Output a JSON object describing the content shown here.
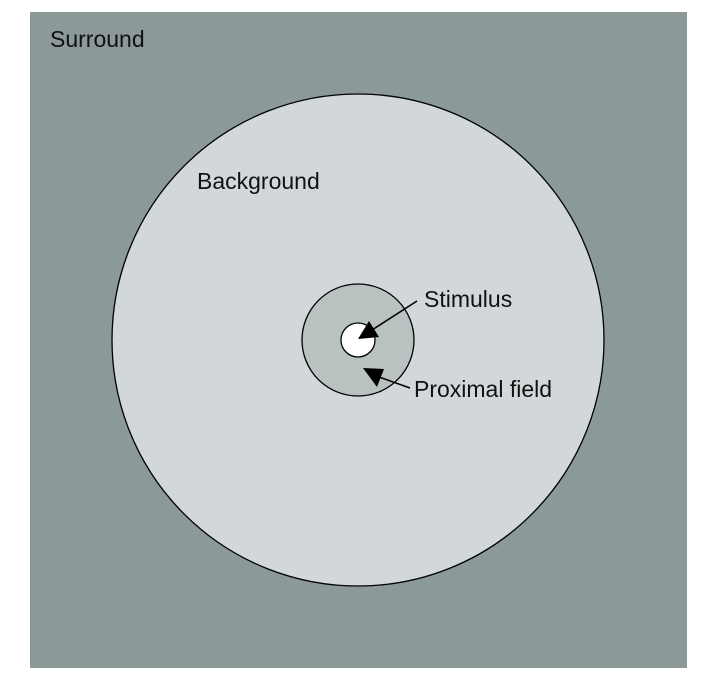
{
  "labels": {
    "surround": "Surround",
    "background": "Background",
    "stimulus": "Stimulus",
    "proximal_field": "Proximal field"
  },
  "colors": {
    "surround": "#8b9998",
    "background": "#d2d8da",
    "proximal_field": "#b9c2c1",
    "stimulus": "#ffffff",
    "outline": "#000000"
  }
}
